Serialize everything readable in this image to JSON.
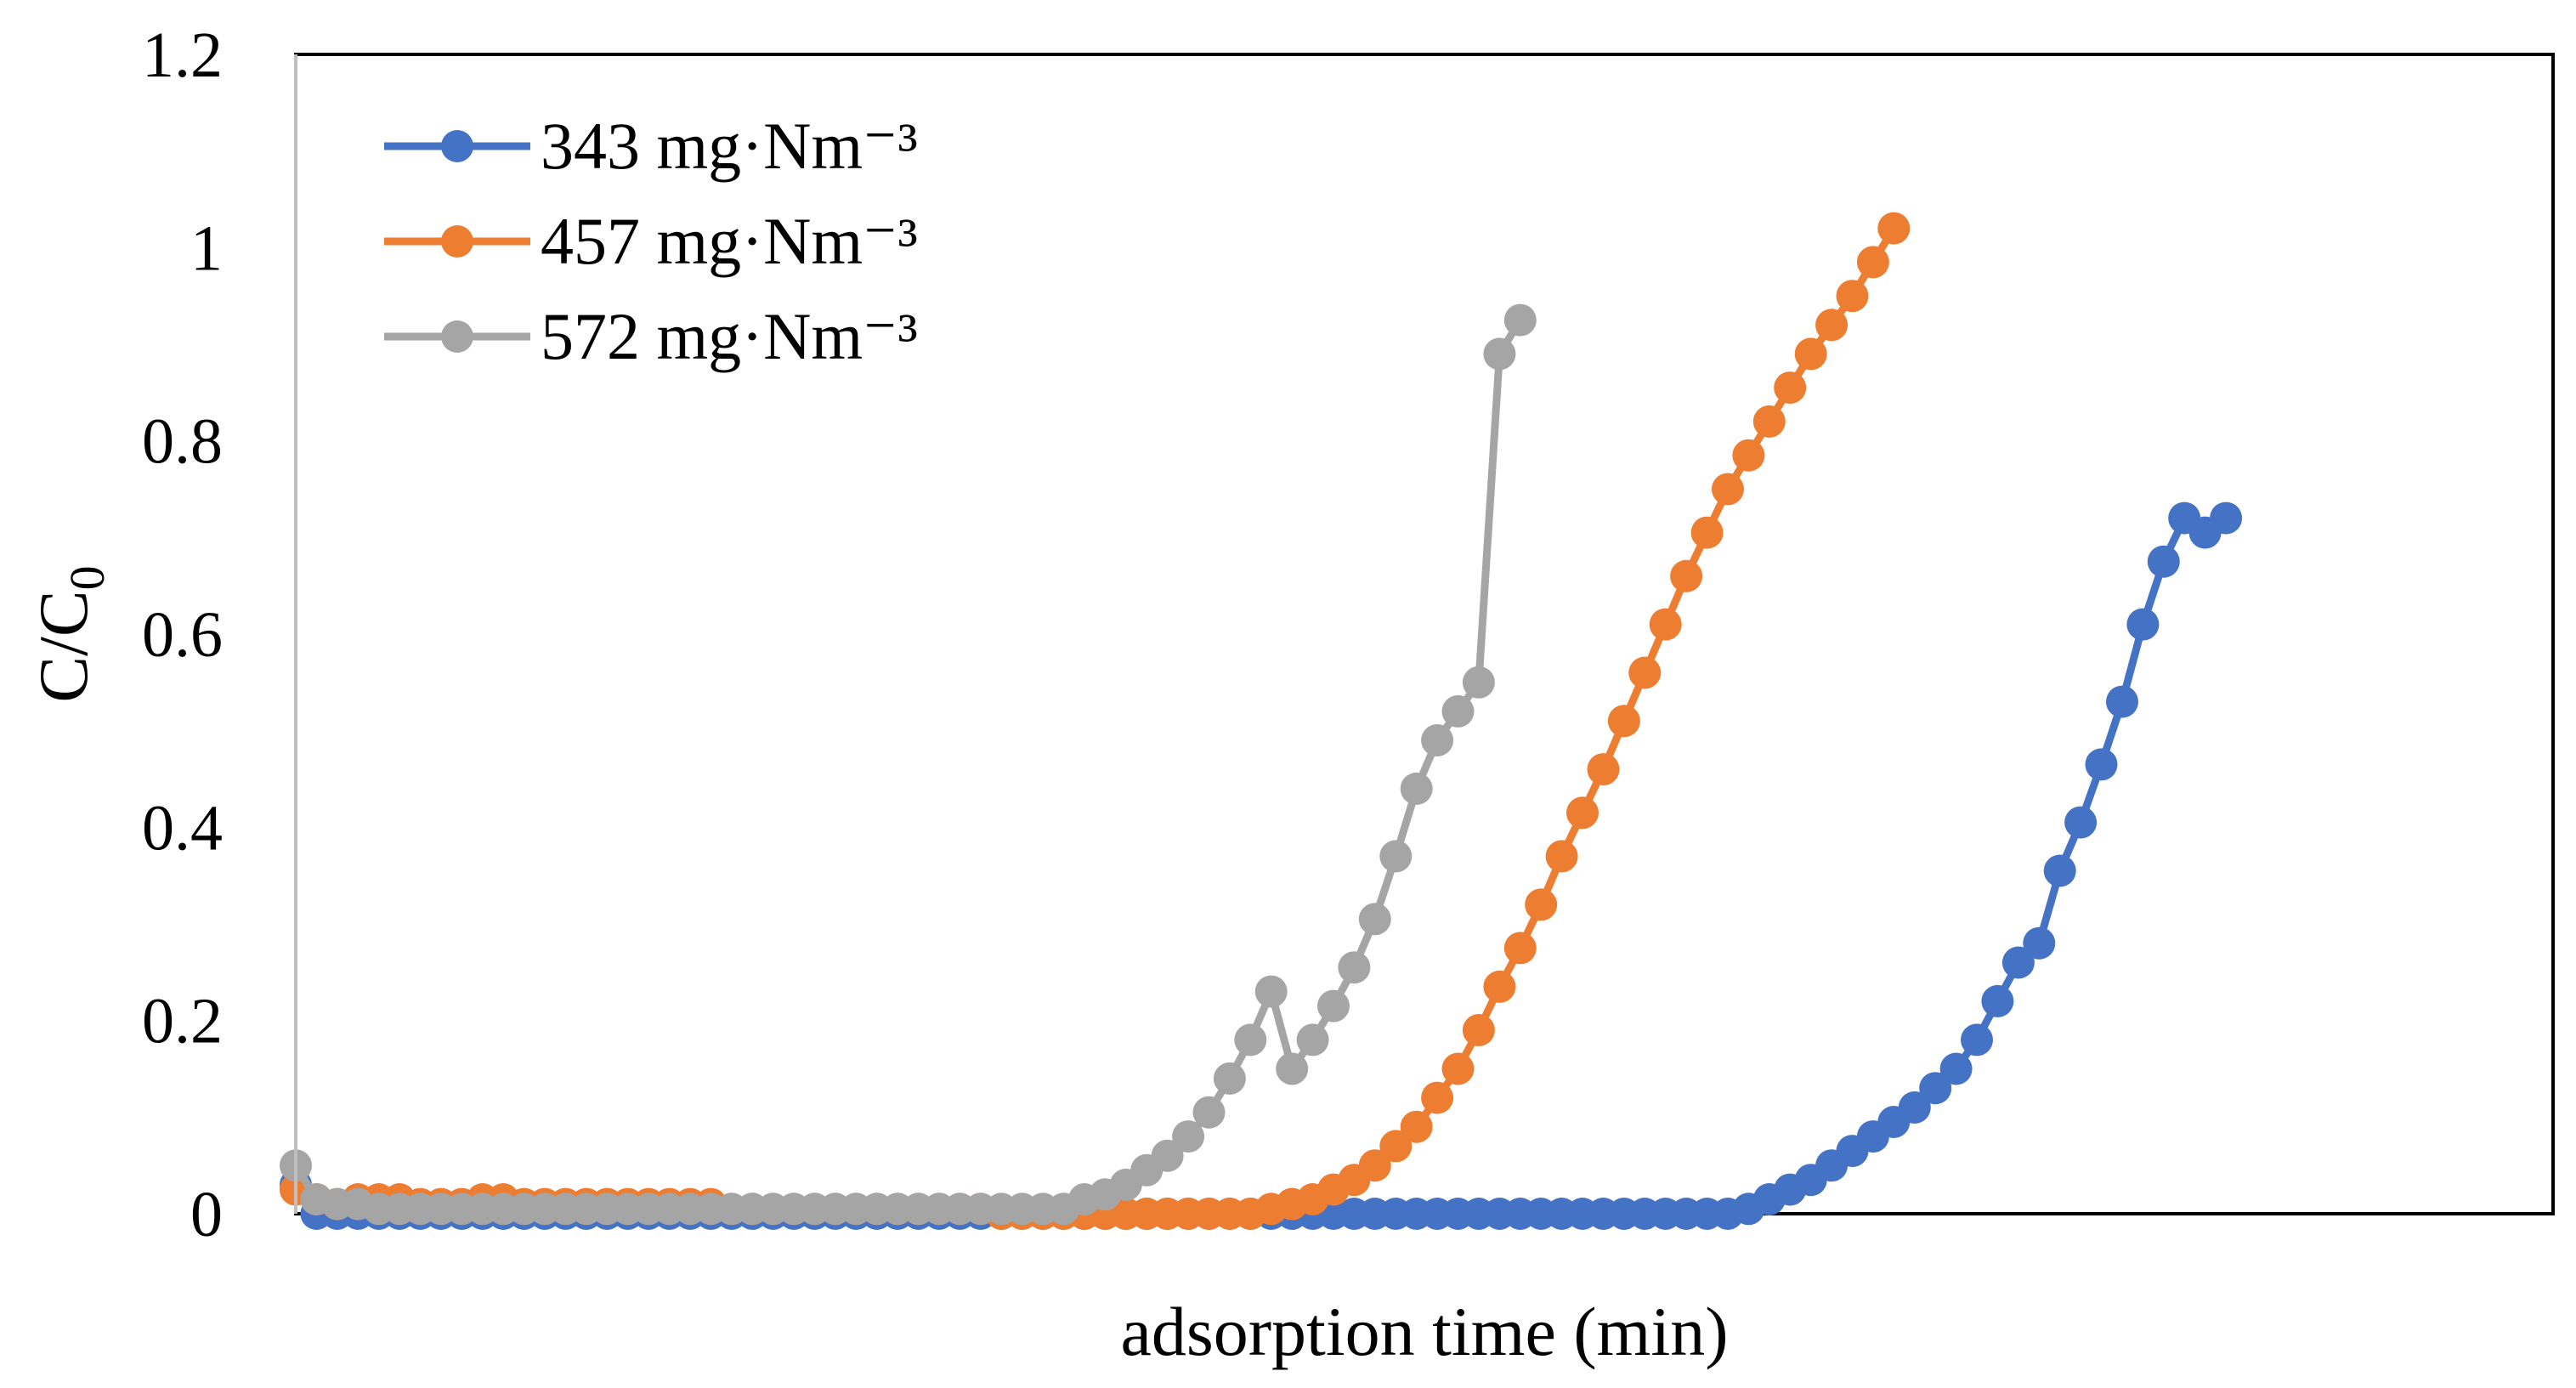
{
  "chart_data": {
    "type": "line",
    "title": "",
    "xlabel": "adsorption time (min)",
    "ylabel_main": "C/C",
    "ylabel_sub": "0",
    "ylim": [
      0,
      1.2
    ],
    "yticks": [
      "0",
      "0.2",
      "0.4",
      "0.6",
      "0.8",
      "1",
      "1.2"
    ],
    "xlim": [
      0,
      100
    ],
    "legend_position": "top-left",
    "series": [
      {
        "name": "343 mg·Nm⁻³",
        "color": "#4472C4",
        "x": [
          0,
          1,
          2,
          3,
          4,
          5,
          6,
          7,
          8,
          9,
          10,
          11,
          12,
          13,
          14,
          15,
          16,
          17,
          18,
          19,
          20,
          21,
          22,
          23,
          24,
          25,
          26,
          27,
          28,
          29,
          30,
          31,
          32,
          33,
          34,
          35,
          36,
          37,
          38,
          39,
          40,
          41,
          42,
          43,
          44,
          45,
          46,
          47,
          48,
          49,
          50,
          51,
          52,
          53,
          54,
          55,
          56,
          57,
          58,
          59,
          60,
          61,
          62,
          63,
          64,
          65,
          66,
          67,
          68,
          69,
          70,
          71,
          72,
          73,
          74,
          75,
          76,
          77,
          78,
          79,
          80,
          81,
          82,
          83,
          84,
          85,
          86,
          87,
          88,
          89,
          90,
          91,
          92,
          93
        ],
        "y": [
          0.03,
          0.0,
          0.0,
          0.0,
          0.0,
          0.0,
          0.0,
          0.0,
          0.0,
          0.0,
          0.0,
          0.0,
          0.0,
          0.0,
          0.0,
          0.0,
          0.0,
          0.0,
          0.0,
          0.0,
          0.0,
          0.0,
          0.0,
          0.0,
          0.0,
          0.0,
          0.0,
          0.0,
          0.0,
          0.0,
          0.0,
          0.0,
          0.0,
          0.0,
          0.0,
          0.0,
          0.0,
          0.0,
          0.0,
          0.0,
          0.0,
          0.0,
          0.0,
          0.0,
          0.0,
          0.0,
          0.0,
          0.0,
          0.0,
          0.0,
          0.0,
          0.0,
          0.0,
          0.0,
          0.0,
          0.0,
          0.0,
          0.0,
          0.0,
          0.0,
          0.0,
          0.0,
          0.0,
          0.0,
          0.0,
          0.0,
          0.0,
          0.0,
          0.0,
          0.0,
          0.005,
          0.015,
          0.025,
          0.035,
          0.05,
          0.065,
          0.08,
          0.095,
          0.11,
          0.13,
          0.15,
          0.18,
          0.22,
          0.26,
          0.28,
          0.355,
          0.405,
          0.465,
          0.53,
          0.61,
          0.675,
          0.72,
          0.705,
          0.72
        ]
      },
      {
        "name": "457 mg·Nm⁻³",
        "color": "#ED7D31",
        "x": [
          0,
          1,
          2,
          3,
          4,
          5,
          6,
          7,
          8,
          9,
          10,
          11,
          12,
          13,
          14,
          15,
          16,
          17,
          18,
          19,
          20,
          21,
          22,
          23,
          24,
          25,
          26,
          27,
          28,
          29,
          30,
          31,
          32,
          33,
          34,
          35,
          36,
          37,
          38,
          39,
          40,
          41,
          42,
          43,
          44,
          45,
          46,
          47,
          48,
          49,
          50,
          51,
          52,
          53,
          54,
          55,
          56,
          57,
          58,
          59,
          60,
          61,
          62,
          63,
          64,
          65,
          66,
          67,
          68,
          69,
          70,
          71,
          72,
          73,
          74,
          75,
          76,
          77
        ],
        "y": [
          0.025,
          0.015,
          0.01,
          0.015,
          0.015,
          0.015,
          0.01,
          0.01,
          0.01,
          0.015,
          0.015,
          0.01,
          0.01,
          0.01,
          0.01,
          0.01,
          0.01,
          0.01,
          0.01,
          0.01,
          0.01,
          0.005,
          0.005,
          0.005,
          0.005,
          0.005,
          0.005,
          0.005,
          0.005,
          0.005,
          0.005,
          0.005,
          0.005,
          0.005,
          0.0,
          0.0,
          0.0,
          0.0,
          0.0,
          0.0,
          0.0,
          0.0,
          0.0,
          0.0,
          0.0,
          0.0,
          0.0,
          0.005,
          0.01,
          0.015,
          0.025,
          0.035,
          0.05,
          0.07,
          0.09,
          0.12,
          0.15,
          0.19,
          0.235,
          0.275,
          0.32,
          0.37,
          0.415,
          0.46,
          0.51,
          0.56,
          0.61,
          0.66,
          0.705,
          0.75,
          0.785,
          0.82,
          0.855,
          0.89,
          0.92,
          0.95,
          0.985,
          1.02
        ]
      },
      {
        "name": "572 mg·Nm⁻³",
        "color": "#A5A5A5",
        "x": [
          0,
          1,
          2,
          3,
          4,
          5,
          6,
          7,
          8,
          9,
          10,
          11,
          12,
          13,
          14,
          15,
          16,
          17,
          18,
          19,
          20,
          21,
          22,
          23,
          24,
          25,
          26,
          27,
          28,
          29,
          30,
          31,
          32,
          33,
          34,
          35,
          36,
          37,
          38,
          39,
          40,
          41,
          42,
          43,
          44,
          45,
          46,
          47,
          48,
          49,
          50,
          51,
          52,
          53,
          54,
          55,
          56,
          57,
          58,
          59
        ],
        "y": [
          0.05,
          0.015,
          0.01,
          0.01,
          0.005,
          0.005,
          0.005,
          0.005,
          0.005,
          0.005,
          0.005,
          0.005,
          0.005,
          0.005,
          0.005,
          0.005,
          0.005,
          0.005,
          0.005,
          0.005,
          0.005,
          0.005,
          0.005,
          0.005,
          0.005,
          0.005,
          0.005,
          0.005,
          0.005,
          0.005,
          0.005,
          0.005,
          0.005,
          0.005,
          0.005,
          0.005,
          0.005,
          0.005,
          0.015,
          0.02,
          0.03,
          0.045,
          0.06,
          0.08,
          0.105,
          0.14,
          0.18,
          0.23,
          0.15,
          0.18,
          0.215,
          0.255,
          0.305,
          0.37,
          0.44,
          0.49,
          0.52,
          0.55,
          0.89,
          0.925
        ]
      }
    ]
  }
}
